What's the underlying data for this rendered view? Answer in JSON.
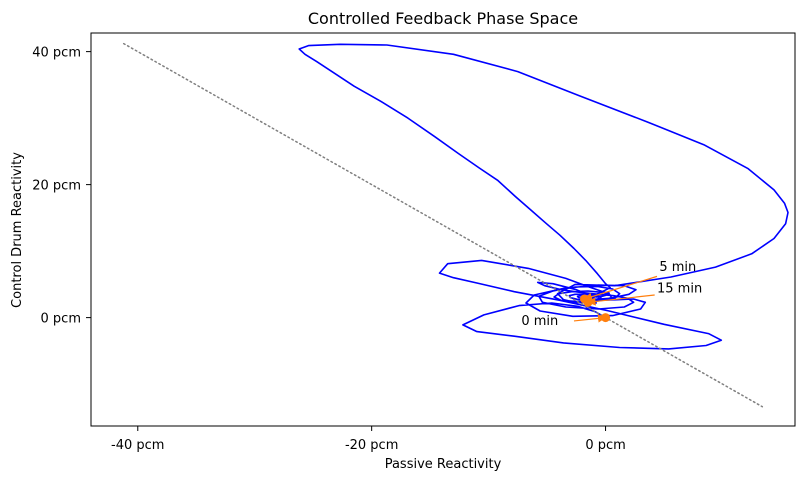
{
  "chart_data": {
    "type": "line",
    "title": "Controlled Feedback Phase Space",
    "xlabel": "Passive Reactivity",
    "ylabel": "Control Drum Reactivity",
    "xlim": [
      -44,
      16.2
    ],
    "ylim": [
      -16.3,
      42.8
    ],
    "xticks": [
      {
        "value": -40,
        "label": "-40 pcm"
      },
      {
        "value": -20,
        "label": "-20 pcm"
      },
      {
        "value": 0,
        "label": "0 pcm"
      }
    ],
    "yticks": [
      {
        "value": 40,
        "label": "40 pcm"
      },
      {
        "value": 20,
        "label": "20 pcm"
      },
      {
        "value": 0,
        "label": "0 pcm"
      }
    ],
    "grid": false,
    "series": [
      {
        "style": "solid",
        "color": "#0000ff",
        "points": [
          [
            0,
            0
          ],
          [
            -0.9,
            0.9
          ],
          [
            -2.4,
            1.7
          ],
          [
            -4.6,
            2.2
          ],
          [
            -7.4,
            1.8
          ],
          [
            -10.4,
            0.4
          ],
          [
            -12.2,
            -1.1
          ],
          [
            -11.0,
            -2.1
          ],
          [
            -7.8,
            -2.8
          ],
          [
            -3.6,
            -3.8
          ],
          [
            1.2,
            -4.5
          ],
          [
            5.4,
            -4.7
          ],
          [
            8.6,
            -4.2
          ],
          [
            9.9,
            -3.4
          ],
          [
            8.8,
            -2.4
          ],
          [
            5.0,
            -1.0
          ],
          [
            0.3,
            1.0
          ],
          [
            -3.9,
            2.6
          ],
          [
            -7.8,
            3.9
          ],
          [
            -11.0,
            5.2
          ],
          [
            -13.0,
            6.0
          ],
          [
            -14.2,
            6.7
          ],
          [
            -13.5,
            8.1
          ],
          [
            -10.6,
            8.6
          ],
          [
            -6.6,
            7.4
          ],
          [
            -3.4,
            5.9
          ],
          [
            -1.4,
            4.6
          ],
          [
            -0.4,
            4.0
          ],
          [
            0.3,
            3.7
          ],
          [
            0.3,
            3.5
          ],
          [
            -0.3,
            3.2
          ],
          [
            -0.7,
            3.2
          ],
          [
            -0.6,
            3.1
          ],
          [
            -0.6,
            3.1
          ],
          [
            -0.7,
            3.1
          ],
          [
            -0.8,
            3.1
          ],
          [
            -1.2,
            3.3
          ],
          [
            -2.5,
            4.2
          ],
          [
            -4.5,
            5.1
          ],
          [
            -5.8,
            5.3
          ],
          [
            -5.2,
            4.8
          ],
          [
            -3.8,
            4.2
          ],
          [
            -2.2,
            3.8
          ],
          [
            -0.6,
            3.5
          ],
          [
            0.7,
            3.3
          ],
          [
            1.9,
            2.9
          ],
          [
            2.4,
            2.3
          ],
          [
            1.6,
            1.6
          ],
          [
            -0.6,
            1.3
          ],
          [
            -3.4,
            1.6
          ],
          [
            -5.4,
            2.3
          ],
          [
            -5.7,
            3.2
          ],
          [
            -4.5,
            4.0
          ],
          [
            -2.6,
            4.6
          ],
          [
            -0.7,
            4.7
          ],
          [
            0.6,
            4.3
          ],
          [
            1.2,
            3.6
          ],
          [
            0.8,
            2.9
          ],
          [
            -0.7,
            2.5
          ],
          [
            -2.4,
            2.4
          ],
          [
            -3.8,
            2.6
          ],
          [
            -4.4,
            3.1
          ],
          [
            -4.0,
            3.6
          ],
          [
            -2.9,
            3.9
          ],
          [
            -1.5,
            4.0
          ],
          [
            -0.3,
            3.8
          ],
          [
            0.4,
            3.4
          ],
          [
            0.5,
            3.0
          ],
          [
            -0.1,
            2.7
          ],
          [
            -1.2,
            2.6
          ],
          [
            -2.3,
            2.7
          ],
          [
            -3.0,
            3.0
          ],
          [
            -3.1,
            3.3
          ],
          [
            -2.6,
            3.5
          ],
          [
            -1.8,
            3.5
          ],
          [
            -1.0,
            3.4
          ],
          [
            -0.5,
            3.2
          ],
          [
            -0.4,
            3.0
          ],
          [
            -0.7,
            2.8
          ],
          [
            -1.3,
            2.7
          ],
          [
            -1.9,
            2.8
          ],
          [
            -2.3,
            3.0
          ],
          [
            -2.4,
            3.2
          ],
          [
            -2.1,
            3.3
          ],
          [
            -1.6,
            3.2
          ],
          [
            -1.2,
            3.1
          ],
          [
            -1.0,
            3.0
          ],
          [
            -1.1,
            2.9
          ],
          [
            -1.4,
            2.8
          ],
          [
            -1.8,
            2.9
          ],
          [
            -2.0,
            3.0
          ],
          [
            -2.0,
            3.1
          ],
          [
            -1.8,
            3.2
          ],
          [
            -1.5,
            3.1
          ],
          [
            -1.4,
            3.0
          ],
          [
            -1.4,
            2.9
          ],
          [
            -1.6,
            2.9
          ],
          [
            -1.8,
            3.0
          ],
          [
            -1.8,
            3.1
          ],
          [
            -1.7,
            3.1
          ],
          [
            -1.6,
            3.0
          ],
          [
            -0.6,
            2.6
          ],
          [
            1.0,
            2.7
          ],
          [
            2.4,
            2.8
          ],
          [
            3.4,
            2.3
          ],
          [
            3.0,
            1.3
          ],
          [
            0.6,
            0.3
          ],
          [
            -2.8,
            0.2
          ],
          [
            -5.6,
            1.0
          ],
          [
            -6.8,
            2.2
          ],
          [
            -6.1,
            3.4
          ],
          [
            -3.6,
            4.4
          ],
          [
            -0.6,
            4.9
          ],
          [
            1.6,
            4.8
          ],
          [
            2.6,
            4.2
          ],
          [
            2.0,
            3.5
          ],
          [
            0.4,
            2.9
          ],
          [
            -1.3,
            2.7
          ],
          [
            -0.8,
            2.2
          ],
          [
            -2.6,
            2.3
          ],
          [
            -3.6,
            2.7
          ],
          [
            -4.1,
            3.6
          ],
          [
            -2.6,
            5.0
          ],
          [
            0.8,
            4.8
          ],
          [
            5.6,
            6.1
          ],
          [
            9.4,
            7.6
          ],
          [
            12.5,
            9.6
          ],
          [
            14.4,
            11.9
          ],
          [
            15.4,
            14.1
          ],
          [
            15.6,
            15.8
          ],
          [
            15.3,
            17.2
          ],
          [
            14.4,
            19.2
          ],
          [
            12.2,
            22.4
          ],
          [
            8.4,
            26.0
          ],
          [
            3.6,
            29.4
          ],
          [
            -2.3,
            33.4
          ],
          [
            -7.5,
            37.0
          ],
          [
            -13.0,
            39.6
          ],
          [
            -18.7,
            41.0
          ],
          [
            -22.7,
            41.1
          ],
          [
            -25.4,
            40.9
          ],
          [
            -26.2,
            40.4
          ],
          [
            -25.7,
            39.6
          ],
          [
            -24.7,
            38.5
          ],
          [
            -23.4,
            37.0
          ],
          [
            -21.5,
            34.8
          ],
          [
            -19.3,
            32.6
          ],
          [
            -16.9,
            30.0
          ],
          [
            -14.6,
            27.2
          ],
          [
            -12.6,
            24.7
          ],
          [
            -10.8,
            22.5
          ],
          [
            -9.2,
            20.6
          ],
          [
            -7.7,
            18.2
          ],
          [
            -6.4,
            16.2
          ],
          [
            -5.1,
            14.2
          ],
          [
            -3.9,
            12.4
          ],
          [
            -2.7,
            10.4
          ],
          [
            -1.7,
            8.6
          ],
          [
            -0.7,
            6.6
          ],
          [
            0.0,
            5.1
          ],
          [
            0.4,
            4.5
          ],
          [
            -0.4,
            3.8
          ],
          [
            -1.3,
            3.1
          ],
          [
            -1.8,
            2.7
          ],
          [
            -1.9,
            2.6
          ]
        ]
      },
      {
        "style": "dotted",
        "color": "#808080",
        "points": [
          [
            -41.2,
            41.2
          ],
          [
            13.4,
            -13.4
          ]
        ]
      }
    ],
    "markers": [
      {
        "x": 0.0,
        "y": 0.0,
        "color": "#ff7f0e"
      },
      {
        "x": -1.8,
        "y": 2.8,
        "color": "#ff7f0e"
      },
      {
        "x": -1.5,
        "y": 2.3,
        "color": "#ff7f0e"
      }
    ],
    "annotations": [
      {
        "text": "0 min",
        "text_at": [
          -7.2,
          -1.1
        ],
        "arrow_from": [
          -2.7,
          -0.5
        ],
        "arrow_to": [
          0.0,
          0.0
        ]
      },
      {
        "text": "5 min",
        "text_at": [
          4.6,
          7.0
        ],
        "arrow_from": [
          4.4,
          6.2
        ],
        "arrow_to": [
          -1.8,
          2.8
        ]
      },
      {
        "text": "15 min",
        "text_at": [
          4.4,
          3.8
        ],
        "arrow_from": [
          4.2,
          3.4
        ],
        "arrow_to": [
          -1.5,
          2.3
        ]
      }
    ]
  }
}
